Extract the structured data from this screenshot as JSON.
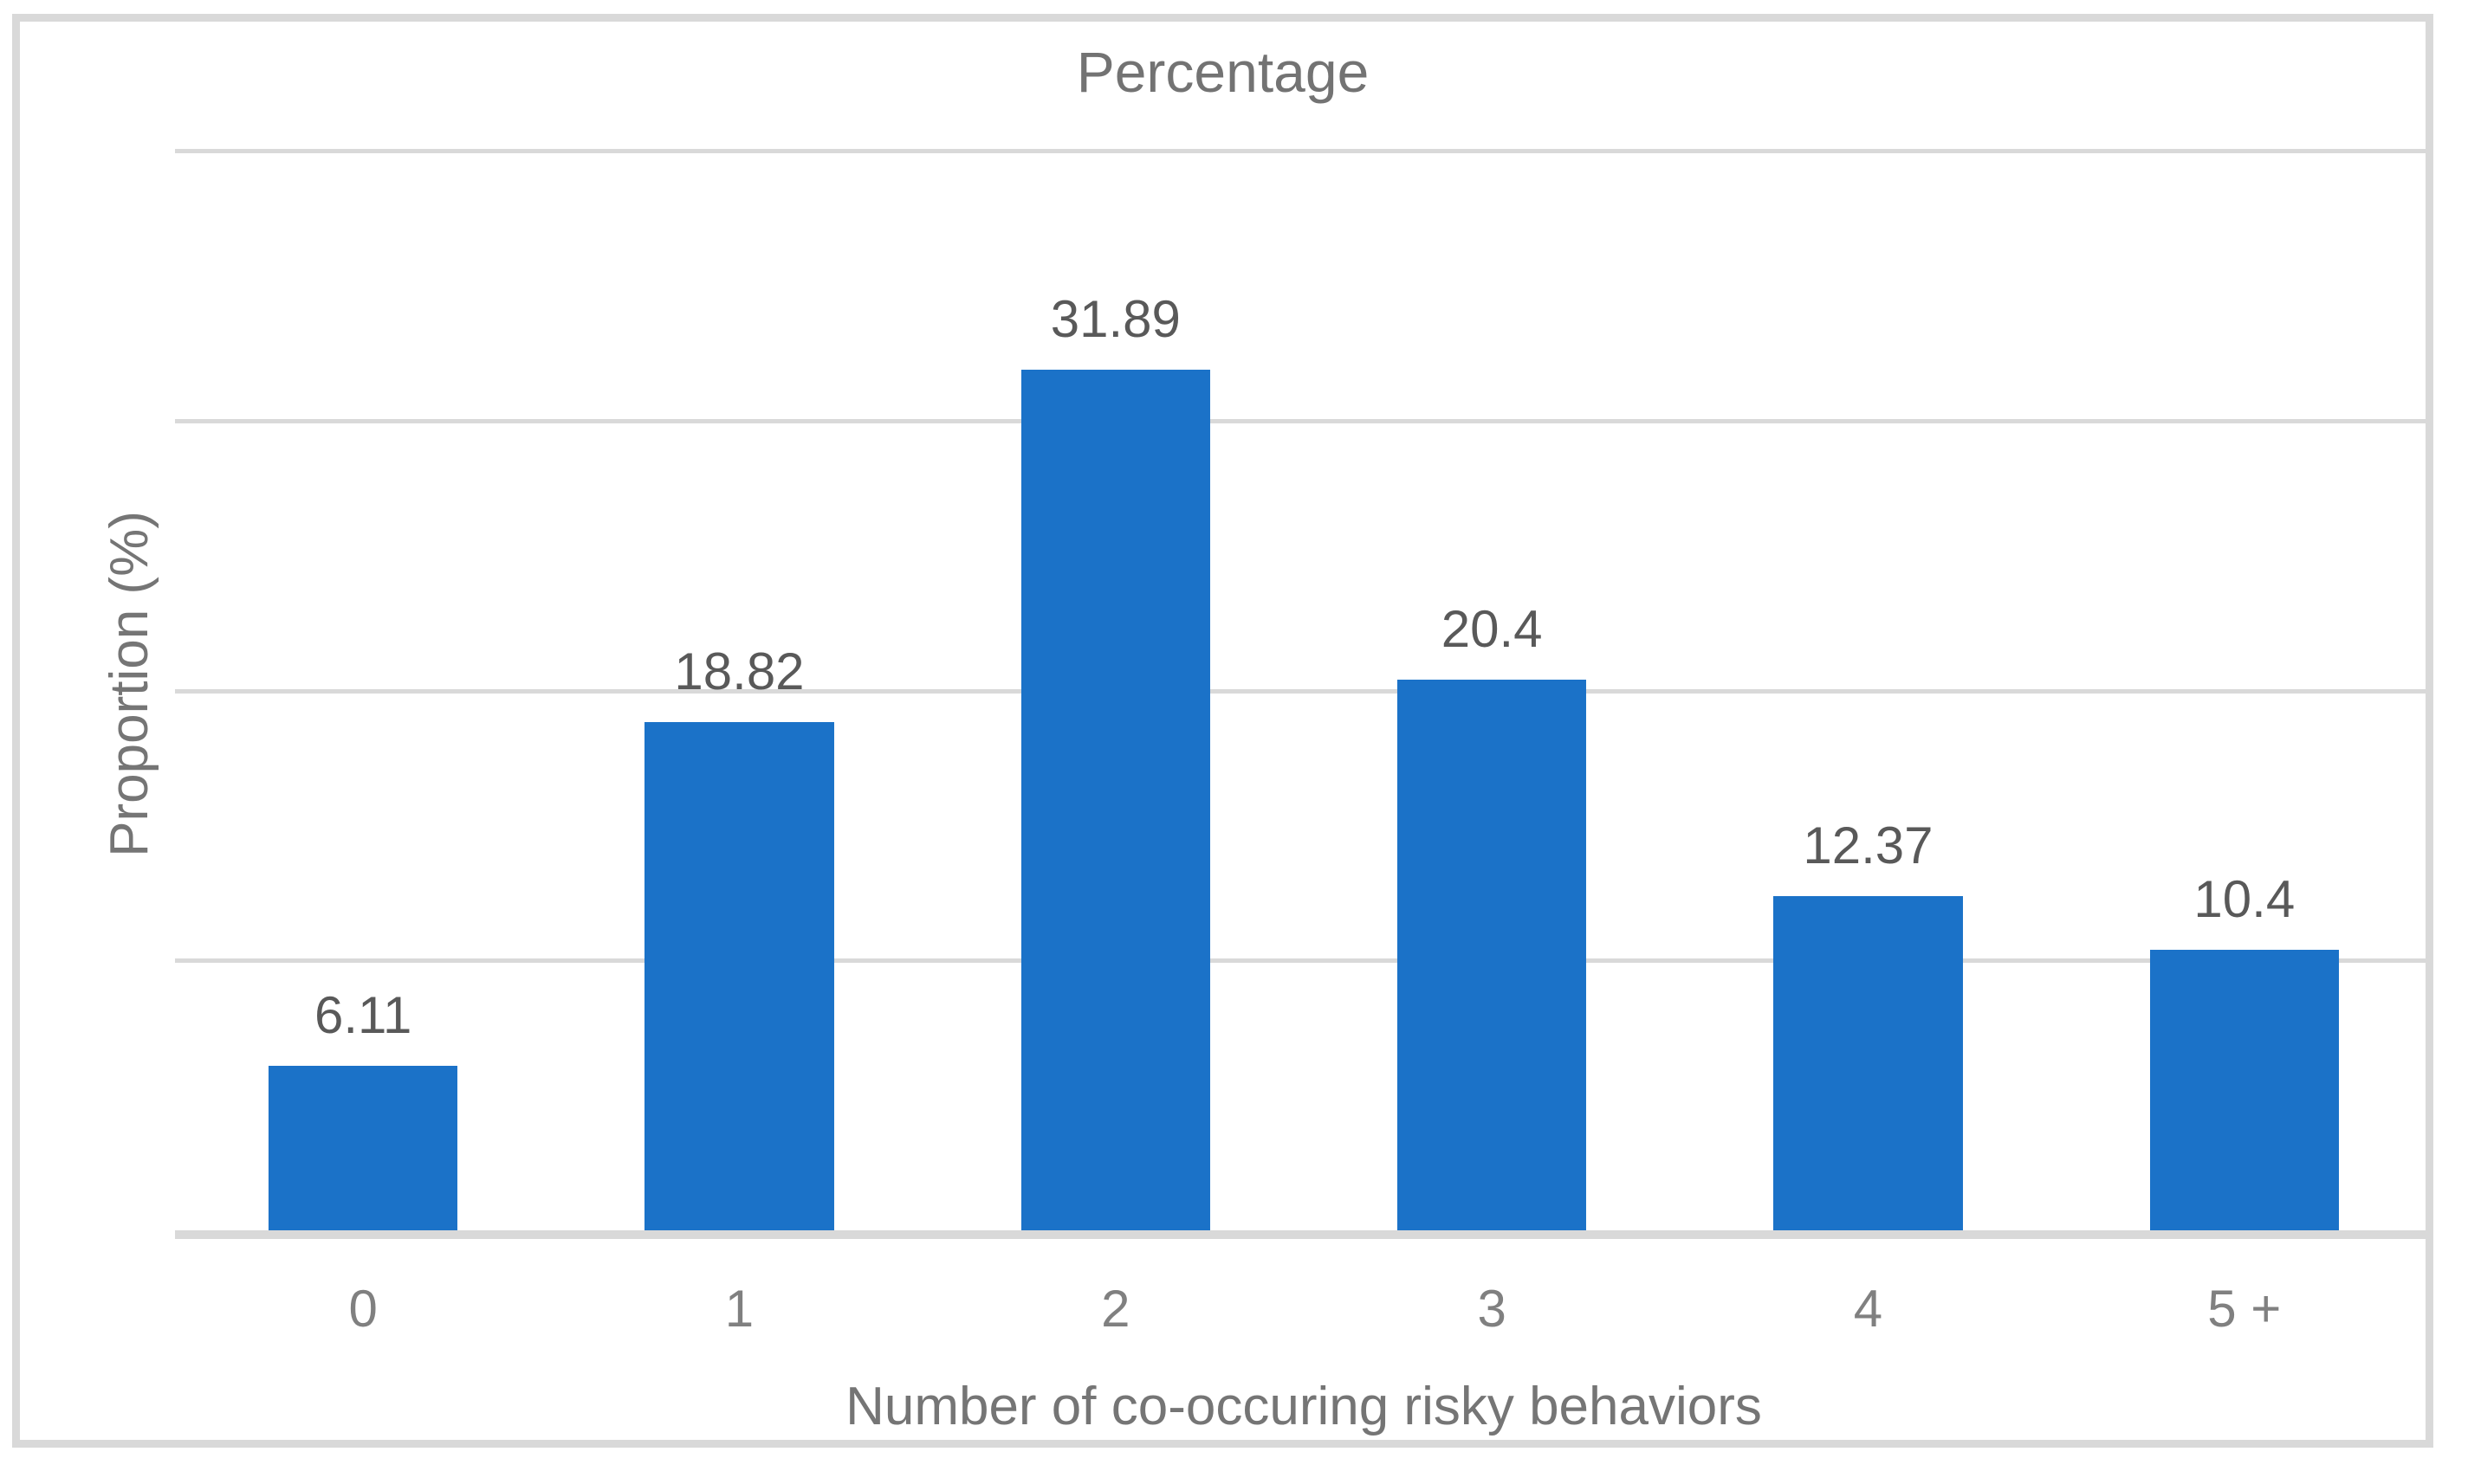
{
  "chart_data": {
    "type": "bar",
    "title": "Percentage",
    "xlabel": "Number of co-occuring risky behaviors",
    "ylabel": "Proportion (%)",
    "categories": [
      "0",
      "1",
      "2",
      "3",
      "4",
      "5 +"
    ],
    "values": [
      6.11,
      18.82,
      31.89,
      20.4,
      12.37,
      10.4
    ],
    "value_labels": [
      "6.11",
      "18.82",
      "31.89",
      "20.4",
      "12.37",
      "10.4"
    ],
    "ylim": [
      0,
      40
    ],
    "gridline_interval": 10,
    "grid": true,
    "legend": "none",
    "y_tick_labels_shown": false,
    "colors": {
      "bar": "#1b72c8",
      "gridline": "#d9d9d9",
      "axis_line": "#d9d9d9",
      "frame_border": "#d9d9d9",
      "title_text": "#737373",
      "value_label_text": "#595959",
      "category_text": "#808080",
      "axis_title_text": "#757575",
      "background": "#ffffff"
    }
  }
}
